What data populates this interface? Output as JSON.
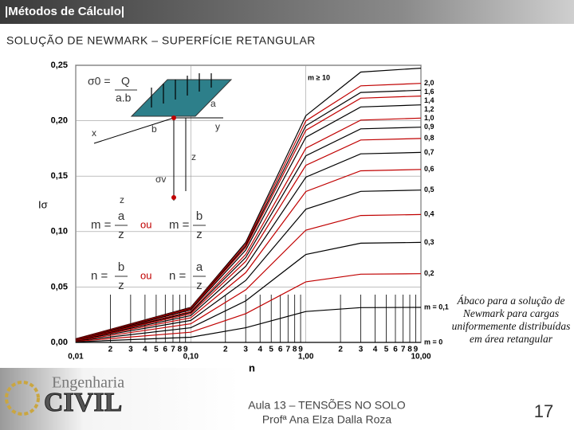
{
  "header": {
    "title": "|Métodos de Cálculo|",
    "subtitle": "SOLUÇÃO DE NEWMARK – SUPERFÍCIE RETANGULAR"
  },
  "chart_data": {
    "type": "line",
    "ylabel": "Iσ",
    "xlabel": "n",
    "log_x": true,
    "grid": true,
    "xlim": [
      0.01,
      10
    ],
    "ylim": [
      0,
      0.25
    ],
    "xticks": [
      {
        "value": 0.01,
        "label": "0,01"
      },
      {
        "value": 0.02,
        "label": "2"
      },
      {
        "value": 0.03,
        "label": "3"
      },
      {
        "value": 0.04,
        "label": "4"
      },
      {
        "value": 0.05,
        "label": "5"
      },
      {
        "value": 0.06,
        "label": "6"
      },
      {
        "value": 0.07,
        "label": "7"
      },
      {
        "value": 0.08,
        "label": "8"
      },
      {
        "value": 0.09,
        "label": "9"
      },
      {
        "value": 0.1,
        "label": "0,10"
      },
      {
        "value": 0.2,
        "label": "2"
      },
      {
        "value": 0.3,
        "label": "3"
      },
      {
        "value": 0.4,
        "label": "4"
      },
      {
        "value": 0.5,
        "label": "5"
      },
      {
        "value": 0.6,
        "label": "6"
      },
      {
        "value": 0.7,
        "label": "7"
      },
      {
        "value": 0.8,
        "label": "8"
      },
      {
        "value": 0.9,
        "label": "9"
      },
      {
        "value": 1,
        "label": "1,00"
      },
      {
        "value": 2,
        "label": "2"
      },
      {
        "value": 3,
        "label": "3"
      },
      {
        "value": 4,
        "label": "4"
      },
      {
        "value": 5,
        "label": "5"
      },
      {
        "value": 6,
        "label": "6"
      },
      {
        "value": 7,
        "label": "7"
      },
      {
        "value": 8,
        "label": "8"
      },
      {
        "value": 9,
        "label": "9"
      },
      {
        "value": 10,
        "label": "10,00"
      }
    ],
    "yticks": [
      {
        "value": 0,
        "label": "0,00"
      },
      {
        "value": 0.05,
        "label": "0,05"
      },
      {
        "value": 0.1,
        "label": "0,10"
      },
      {
        "value": 0.15,
        "label": "0,15"
      },
      {
        "value": 0.2,
        "label": "0,20"
      },
      {
        "value": 0.25,
        "label": "0,25"
      }
    ],
    "x": [
      0.01,
      0.1,
      0.3,
      1,
      3,
      10
    ],
    "series": [
      {
        "name": "m ≥ 10",
        "color": "#000000",
        "values": [
          0.0032,
          0.0316,
          0.0902,
          0.2046,
          0.2439,
          0.2474
        ]
      },
      {
        "name": "2,0",
        "color": "#c00000",
        "values": [
          0.0031,
          0.0311,
          0.0887,
          0.1999,
          0.2315,
          0.2337
        ]
      },
      {
        "name": "1,6",
        "color": "#000000",
        "values": [
          0.0031,
          0.0306,
          0.0871,
          0.1955,
          0.2255,
          0.2275
        ]
      },
      {
        "name": "1,4",
        "color": "#c00000",
        "values": [
          0.003,
          0.0301,
          0.0856,
          0.1914,
          0.2203,
          0.2223
        ]
      },
      {
        "name": "1,2",
        "color": "#000000",
        "values": [
          0.0029,
          0.0293,
          0.0832,
          0.1851,
          0.2124,
          0.2143
        ]
      },
      {
        "name": "1,0",
        "color": "#c00000",
        "values": [
          0.0028,
          0.0279,
          0.0794,
          0.1752,
          0.2006,
          0.2024
        ]
      },
      {
        "name": "0,9",
        "color": "#000000",
        "values": [
          0.0027,
          0.027,
          0.0766,
          0.1684,
          0.1927,
          0.1942
        ]
      },
      {
        "name": "0,8",
        "color": "#c00000",
        "values": [
          0.0026,
          0.0258,
          0.0731,
          0.1598,
          0.1826,
          0.184
        ]
      },
      {
        "name": "0,7",
        "color": "#000000",
        "values": [
          0.0024,
          0.0242,
          0.0686,
          0.1491,
          0.1701,
          0.1714
        ]
      },
      {
        "name": "0,6",
        "color": "#c00000",
        "values": [
          0.0022,
          0.0222,
          0.0629,
          0.1361,
          0.1548,
          0.156
        ]
      },
      {
        "name": "0,5",
        "color": "#000000",
        "values": [
          0.002,
          0.0198,
          0.0559,
          0.1202,
          0.1363,
          0.1374
        ]
      },
      {
        "name": "0,4",
        "color": "#c00000",
        "values": [
          0.0017,
          0.0168,
          0.0474,
          0.1013,
          0.1145,
          0.1154
        ]
      },
      {
        "name": "0,3",
        "color": "#000000",
        "values": [
          0.0013,
          0.0132,
          0.0374,
          0.0794,
          0.0895,
          0.0902
        ]
      },
      {
        "name": "0,2",
        "color": "#c00000",
        "values": [
          0.0009,
          0.0092,
          0.0259,
          0.0547,
          0.0616,
          0.062
        ]
      },
      {
        "name": "m = 0,1",
        "color": "#000000",
        "values": [
          0.0005,
          0.0047,
          0.0132,
          0.0279,
          0.0314,
          0.0316
        ]
      },
      {
        "name": "m = 0",
        "color": "#000000",
        "values": [
          0,
          0,
          0,
          0,
          0,
          0
        ]
      }
    ]
  },
  "diagram": {
    "sigma0": "σ0 =",
    "Q": "Q",
    "ab": "a.b",
    "a": "a",
    "b": "b",
    "x": "x",
    "y": "y",
    "z1": "z",
    "sigma_v": "σv",
    "z2": "z",
    "formulas": [
      {
        "left": {
          "lhs": "m =",
          "num": "a",
          "den": "z"
        },
        "or": "ou",
        "right": {
          "lhs": "m =",
          "num": "b",
          "den": "z"
        }
      },
      {
        "left": {
          "lhs": "n =",
          "num": "b",
          "den": "z"
        },
        "or": "ou",
        "right": {
          "lhs": "n =",
          "num": "a",
          "den": "z"
        }
      }
    ]
  },
  "caption": "Ábaco para a solução de Newmark para cargas uniformemente distribuídas em área retangular",
  "footer": {
    "logo_top": "Engenharia",
    "logo_main": "CIVIL",
    "course": "Aula 13 – TENSÕES NO SOLO",
    "teacher": "Profª Ana Elza Dalla Roza",
    "page": "17"
  }
}
